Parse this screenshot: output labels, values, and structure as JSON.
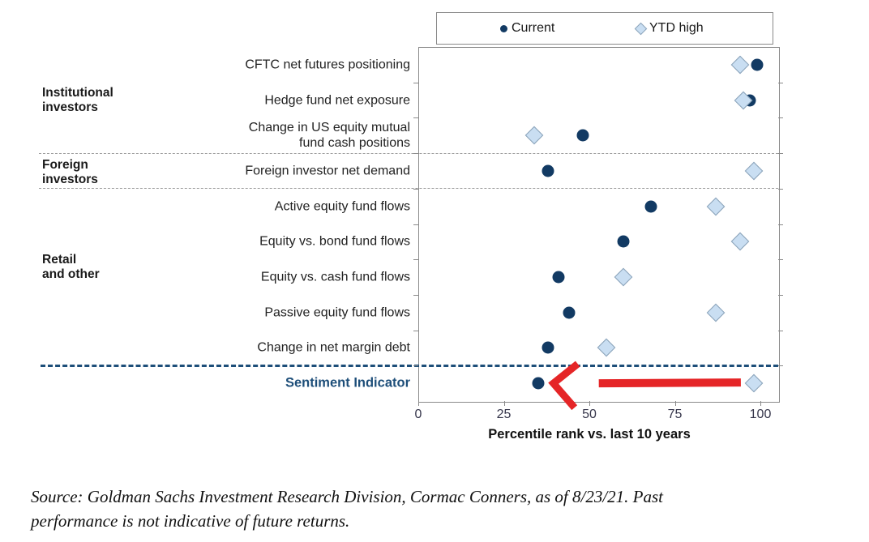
{
  "chart_data": {
    "type": "scatter",
    "variant": "horizontal-dot-plot",
    "title": "",
    "xlabel": "Percentile rank vs. last 10 years",
    "x_ticks": [
      0,
      25,
      50,
      75,
      100
    ],
    "xlim": [
      0,
      105
    ],
    "grid": false,
    "legend_position": "top-right",
    "categories": [
      "CFTC net futures positioning",
      "Hedge fund net exposure",
      "Change in US equity mutual\nfund cash positions",
      "Foreign investor net demand",
      "Active equity fund flows",
      "Equity vs. bond fund flows",
      "Equity vs. cash fund flows",
      "Passive equity fund flows",
      "Change in net margin debt",
      "Sentiment Indicator"
    ],
    "series": [
      {
        "name": "Current",
        "marker": "dot",
        "color": "#123a63",
        "values": [
          99,
          97,
          48,
          38,
          68,
          60,
          41,
          44,
          38,
          35
        ]
      },
      {
        "name": "YTD high",
        "marker": "diamond",
        "color": "#c9def2",
        "border_color": "#8ba3b9",
        "values": [
          94,
          95,
          34,
          98,
          87,
          94,
          60,
          87,
          55,
          98
        ]
      }
    ],
    "groups": [
      {
        "label": "Institutional\ninvestors",
        "rows": [
          0,
          2
        ],
        "divider_after": "light"
      },
      {
        "label": "Foreign\ninvestors",
        "rows": [
          3,
          3
        ],
        "divider_after": "light"
      },
      {
        "label": "Retail\nand other",
        "rows": [
          4,
          8
        ],
        "divider_after": "navy"
      },
      {
        "label": "",
        "rows": [
          9,
          9
        ],
        "divider_after": "none"
      }
    ],
    "highlight_category": "Sentiment Indicator",
    "annotation": {
      "type": "arrow",
      "color": "#e52527",
      "row": "Sentiment Indicator",
      "from_value": 95,
      "to_value": 39.5
    }
  },
  "source": {
    "text": "Source: Goldman Sachs Investment Research Division, Cormac Conners, as of 8/23/21. Past performance is not indicative of future returns."
  }
}
